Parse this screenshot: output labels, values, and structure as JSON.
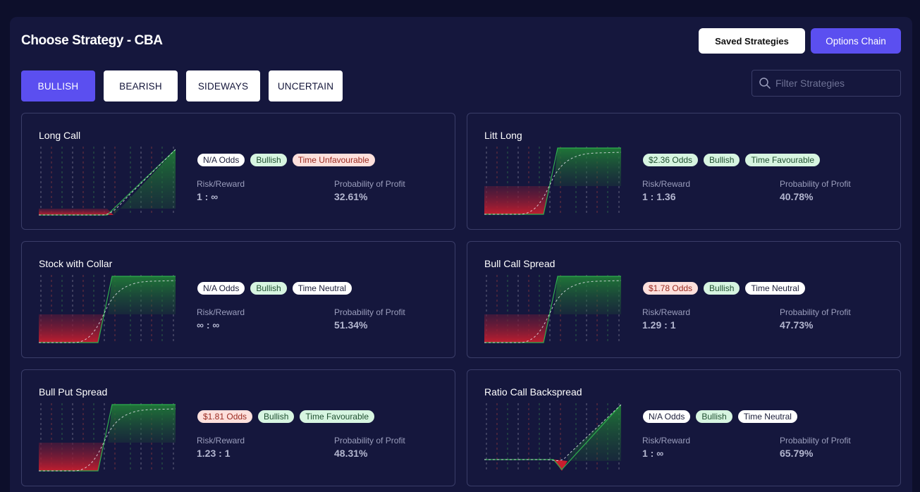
{
  "header": {
    "title": "Choose Strategy - CBA",
    "saved_label": "Saved Strategies",
    "chain_label": "Options Chain"
  },
  "tabs": [
    {
      "label": "BULLISH",
      "active": true
    },
    {
      "label": "BEARISH",
      "active": false
    },
    {
      "label": "SIDEWAYS",
      "active": false
    },
    {
      "label": "UNCERTAIN",
      "active": false
    }
  ],
  "filter": {
    "placeholder": "Filter Strategies"
  },
  "labels": {
    "risk_reward": "Risk/Reward",
    "pop": "Probability of Profit"
  },
  "colors": {
    "accent": "#5b4ff0",
    "profit": "#2fae4e",
    "loss": "#d3202b",
    "badge_green": "#d7f5e1",
    "badge_red": "#fde0dc"
  },
  "strategies": [
    {
      "name": "Long Call",
      "odds": "N/A Odds",
      "odds_tone": "white",
      "sentiment": "Bullish",
      "time": "Time Unfavourable",
      "time_tone": "red",
      "risk_reward": "1 : ∞",
      "pop": "32.61%",
      "payoff": "long_call"
    },
    {
      "name": "Litt Long",
      "odds": "$2.36 Odds",
      "odds_tone": "green",
      "sentiment": "Bullish",
      "time": "Time Favourable",
      "time_tone": "green",
      "risk_reward": "1 : 1.36",
      "pop": "40.78%",
      "payoff": "capped"
    },
    {
      "name": "Stock with Collar",
      "odds": "N/A Odds",
      "odds_tone": "white",
      "sentiment": "Bullish",
      "time": "Time Neutral",
      "time_tone": "white",
      "risk_reward": "∞ : ∞",
      "pop": "51.34%",
      "payoff": "capped"
    },
    {
      "name": "Bull Call Spread",
      "odds": "$1.78 Odds",
      "odds_tone": "red",
      "sentiment": "Bullish",
      "time": "Time Neutral",
      "time_tone": "white",
      "risk_reward": "1.29 : 1",
      "pop": "47.73%",
      "payoff": "capped"
    },
    {
      "name": "Bull Put Spread",
      "odds": "$1.81 Odds",
      "odds_tone": "red",
      "sentiment": "Bullish",
      "time": "Time Favourable",
      "time_tone": "green",
      "risk_reward": "1.23 : 1",
      "pop": "48.31%",
      "payoff": "capped"
    },
    {
      "name": "Ratio Call Backspread",
      "odds": "N/A Odds",
      "odds_tone": "white",
      "sentiment": "Bullish",
      "time": "Time Neutral",
      "time_tone": "white",
      "risk_reward": "1 : ∞",
      "pop": "65.79%",
      "payoff": "backspread"
    }
  ]
}
